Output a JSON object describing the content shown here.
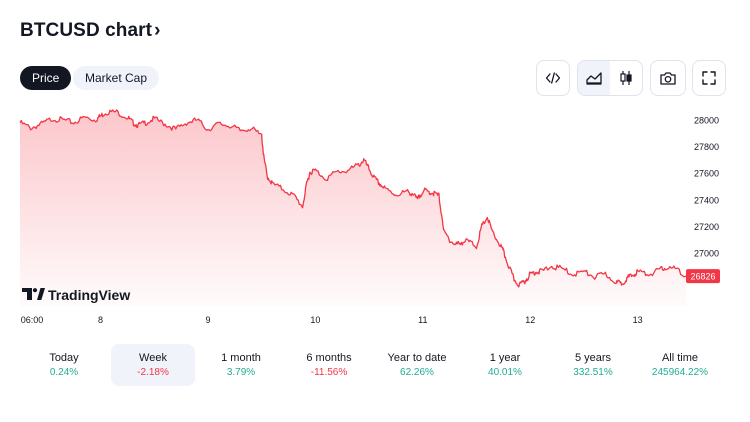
{
  "header": {
    "title": "BTCUSD chart",
    "title_chevron": "›"
  },
  "tabs": [
    {
      "label": "Price",
      "active": true
    },
    {
      "label": "Market Cap",
      "active": false
    }
  ],
  "toolbar": {
    "embed_icon": "code-icon",
    "area_icon": "area-chart-icon",
    "candle_icon": "candlestick-icon",
    "snapshot_icon": "camera-icon",
    "fullscreen_icon": "fullscreen-icon"
  },
  "watermark": {
    "text": "TradingView"
  },
  "colors": {
    "line": "#f23645",
    "positive": "#22ab94",
    "negative": "#f23645",
    "dark": "#131722"
  },
  "chart_data": {
    "type": "area",
    "symbol": "BTCUSD",
    "y_ticks": [
      28000,
      27800,
      27600,
      27400,
      27200,
      27000
    ],
    "ylim": [
      26720,
      28100
    ],
    "x_tick_labels": [
      "06:00",
      "8",
      "9",
      "10",
      "11",
      "12",
      "13"
    ],
    "x_tick_days": [
      7.25,
      8,
      9,
      10,
      11,
      12,
      13
    ],
    "xlim": [
      7.25,
      13.45
    ],
    "last_price_label": "26826",
    "last_price": 26826,
    "series": [
      {
        "x": [
          7.25,
          7.35,
          7.45,
          7.55,
          7.65,
          7.75,
          7.85,
          7.95,
          8.0,
          8.05,
          8.15,
          8.25,
          8.3,
          8.35,
          8.42,
          8.5,
          8.6,
          8.7,
          8.8,
          8.9,
          9.0,
          9.1,
          9.2,
          9.3,
          9.4,
          9.5,
          9.52,
          9.55,
          9.6,
          9.7,
          9.8,
          9.88,
          9.92,
          9.95,
          10.0,
          10.1,
          10.2,
          10.3,
          10.4,
          10.45,
          10.5,
          10.55,
          10.6,
          10.65,
          10.75,
          10.85,
          10.9,
          10.95,
          11.0,
          11.05,
          11.1,
          11.15,
          11.2,
          11.25,
          11.3,
          11.35,
          11.42,
          11.5,
          11.55,
          11.6,
          11.65,
          11.72,
          11.75,
          11.8,
          11.85,
          11.9,
          11.95,
          12.0,
          12.05,
          12.1,
          12.2,
          12.3,
          12.4,
          12.5,
          12.6,
          12.7,
          12.8,
          12.85,
          12.9,
          12.95,
          13.0,
          13.1,
          13.2,
          13.25,
          13.35,
          13.45
        ],
        "values": [
          27980,
          27940,
          27970,
          28010,
          28000,
          27980,
          28020,
          28000,
          28030,
          28060,
          28060,
          28020,
          27980,
          27960,
          27980,
          28010,
          27970,
          27930,
          27980,
          28000,
          27930,
          27970,
          27960,
          27920,
          27940,
          27880,
          27720,
          27580,
          27520,
          27480,
          27430,
          27350,
          27520,
          27610,
          27620,
          27560,
          27610,
          27620,
          27660,
          27700,
          27630,
          27560,
          27520,
          27480,
          27440,
          27460,
          27450,
          27400,
          27470,
          27460,
          27450,
          27430,
          27150,
          27100,
          27060,
          27080,
          27090,
          27050,
          27200,
          27270,
          27150,
          27060,
          27010,
          26900,
          26800,
          26760,
          26790,
          26840,
          26860,
          26860,
          26900,
          26880,
          26840,
          26860,
          26820,
          26840,
          26780,
          26770,
          26810,
          26830,
          26860,
          26840,
          26870,
          26890,
          26880,
          26826
        ]
      }
    ]
  },
  "periods": [
    {
      "label": "Today",
      "value": "0.24%",
      "sign": "pos",
      "selected": false
    },
    {
      "label": "Week",
      "value": "-2.18%",
      "sign": "neg",
      "selected": true
    },
    {
      "label": "1 month",
      "value": "3.79%",
      "sign": "pos",
      "selected": false
    },
    {
      "label": "6 months",
      "value": "-11.56%",
      "sign": "neg",
      "selected": false
    },
    {
      "label": "Year to date",
      "value": "62.26%",
      "sign": "pos",
      "selected": false
    },
    {
      "label": "1 year",
      "value": "40.01%",
      "sign": "pos",
      "selected": false
    },
    {
      "label": "5 years",
      "value": "332.51%",
      "sign": "pos",
      "selected": false
    },
    {
      "label": "All time",
      "value": "245964.22%",
      "sign": "pos",
      "selected": false
    }
  ]
}
